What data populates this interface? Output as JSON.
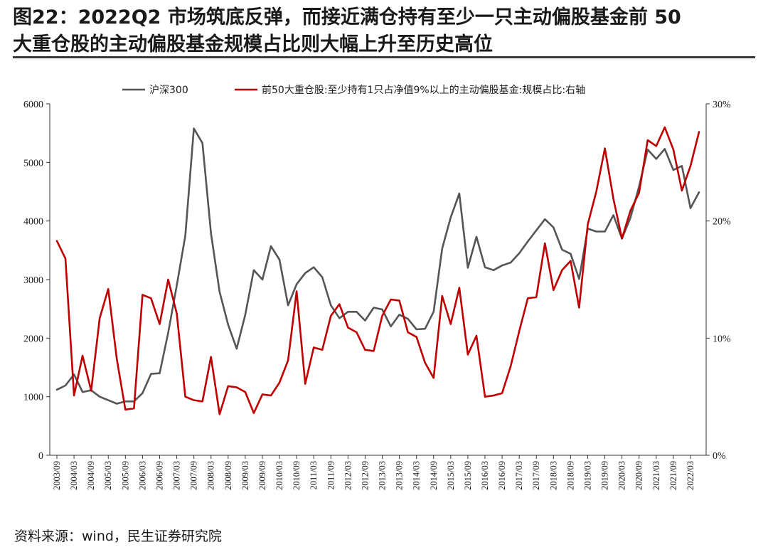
{
  "title": {
    "line1": "图22：2022Q2 市场筑底反弹，而接近满仓持有至少一只主动偏股基金前 50",
    "line2": "大重仓股的主动偏股基金规模占比则大幅上升至历史高位"
  },
  "source": "资料来源：wind，民生证券研究院",
  "colors": {
    "series_hs300": "#555555",
    "series_top50": "#c00000",
    "axis": "#333333",
    "rule": "#3a3a3a"
  },
  "chart_data": {
    "type": "line",
    "title": "",
    "legend_position": "top",
    "x_tick_labels": [
      "2003/09",
      "2004/03",
      "2004/09",
      "2005/03",
      "2005/09",
      "2006/03",
      "2006/09",
      "2007/03",
      "2007/09",
      "2008/03",
      "2008/09",
      "2009/03",
      "2009/09",
      "2010/03",
      "2010/09",
      "2011/03",
      "2011/09",
      "2012/03",
      "2012/09",
      "2013/03",
      "2013/09",
      "2014/03",
      "2014/09",
      "2015/03",
      "2015/09",
      "2016/03",
      "2016/09",
      "2017/03",
      "2017/09",
      "2018/03",
      "2018/09",
      "2019/03",
      "2019/09",
      "2020/03",
      "2020/09",
      "2021/03",
      "2021/09",
      "2022/03"
    ],
    "left_axis": {
      "min": 0,
      "max": 6000,
      "ticks": [
        0,
        1000,
        2000,
        3000,
        4000,
        5000,
        6000
      ],
      "tick_labels": [
        "0",
        "1000",
        "2000",
        "3000",
        "4000",
        "5000",
        "6000"
      ]
    },
    "right_axis": {
      "min": 0,
      "max": 30,
      "ticks": [
        0,
        10,
        20,
        30
      ],
      "tick_labels": [
        "0%",
        "10%",
        "20%",
        "30%"
      ]
    },
    "series": [
      {
        "name": "沪深300",
        "axis": "left",
        "color": "#555555",
        "values": [
          1120,
          1190,
          1380,
          1080,
          1110,
          1000,
          940,
          880,
          920,
          920,
          1060,
          1390,
          1400,
          2090,
          2900,
          3750,
          5580,
          5330,
          3790,
          2790,
          2230,
          1820,
          2400,
          3160,
          3000,
          3570,
          3340,
          2560,
          2920,
          3110,
          3210,
          3040,
          2560,
          2340,
          2450,
          2450,
          2300,
          2520,
          2490,
          2200,
          2400,
          2330,
          2150,
          2160,
          2450,
          3530,
          4060,
          4470,
          3200,
          3730,
          3210,
          3160,
          3240,
          3290,
          3450,
          3650,
          3840,
          4030,
          3890,
          3510,
          3440,
          3010,
          3870,
          3820,
          3820,
          4100,
          3700,
          4060,
          4590,
          5220,
          5060,
          5230,
          4870,
          4940,
          4220,
          4490
        ]
      },
      {
        "name": "前50大重仓股:至少持有1只占净值9%以上的主动偏股基金:规模占比:右轴",
        "axis": "right",
        "color": "#c00000",
        "values": [
          18.3,
          16.8,
          5.1,
          8.5,
          5.5,
          11.7,
          14.2,
          8.2,
          3.9,
          4.0,
          13.7,
          13.4,
          11.2,
          15.0,
          12.1,
          5.0,
          4.7,
          4.6,
          8.4,
          3.5,
          5.9,
          5.8,
          5.4,
          3.6,
          5.2,
          5.1,
          6.2,
          8.1,
          14.0,
          6.1,
          9.2,
          9.0,
          11.9,
          12.9,
          10.9,
          10.5,
          9.0,
          8.9,
          11.9,
          13.3,
          13.2,
          10.5,
          10.1,
          7.9,
          6.6,
          13.6,
          11.2,
          14.3,
          8.6,
          10.2,
          5.0,
          5.1,
          5.3,
          7.6,
          10.6,
          13.4,
          13.5,
          18.1,
          14.1,
          15.8,
          16.6,
          12.6,
          19.7,
          22.5,
          26.2,
          21.9,
          18.5,
          20.9,
          22.4,
          26.9,
          26.4,
          28.0,
          26.1,
          22.6,
          24.7,
          27.6
        ]
      }
    ]
  }
}
